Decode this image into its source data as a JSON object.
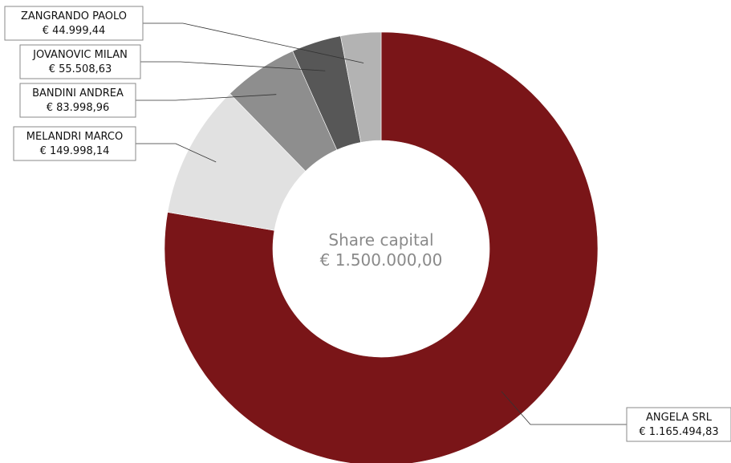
{
  "chart_data": {
    "type": "pie",
    "donut": true,
    "center_text": [
      "Share capital",
      "€ 1.500.000,00"
    ],
    "total": 1500000.0,
    "slices": [
      {
        "label": "ANGELA SRL",
        "amount": "€ 1.165.494,83",
        "value": 1165494.83,
        "color": "#7a1518"
      },
      {
        "label": "MELANDRI MARCO",
        "amount": "€ 149.998,14",
        "value": 149998.14,
        "color": "#e1e1e1"
      },
      {
        "label": "BANDINI ANDREA",
        "amount": "€ 83.998,96",
        "value": 83998.96,
        "color": "#8e8e8e"
      },
      {
        "label": "JOVANOVIC MILAN",
        "amount": "€ 55.508,63",
        "value": 55508.63,
        "color": "#575757"
      },
      {
        "label": "ZANGRANDO PAOLO",
        "amount": "€ 44.999,44",
        "value": 44999.44,
        "color": "#b3b3b3"
      }
    ],
    "legend": "none",
    "grid": false
  }
}
